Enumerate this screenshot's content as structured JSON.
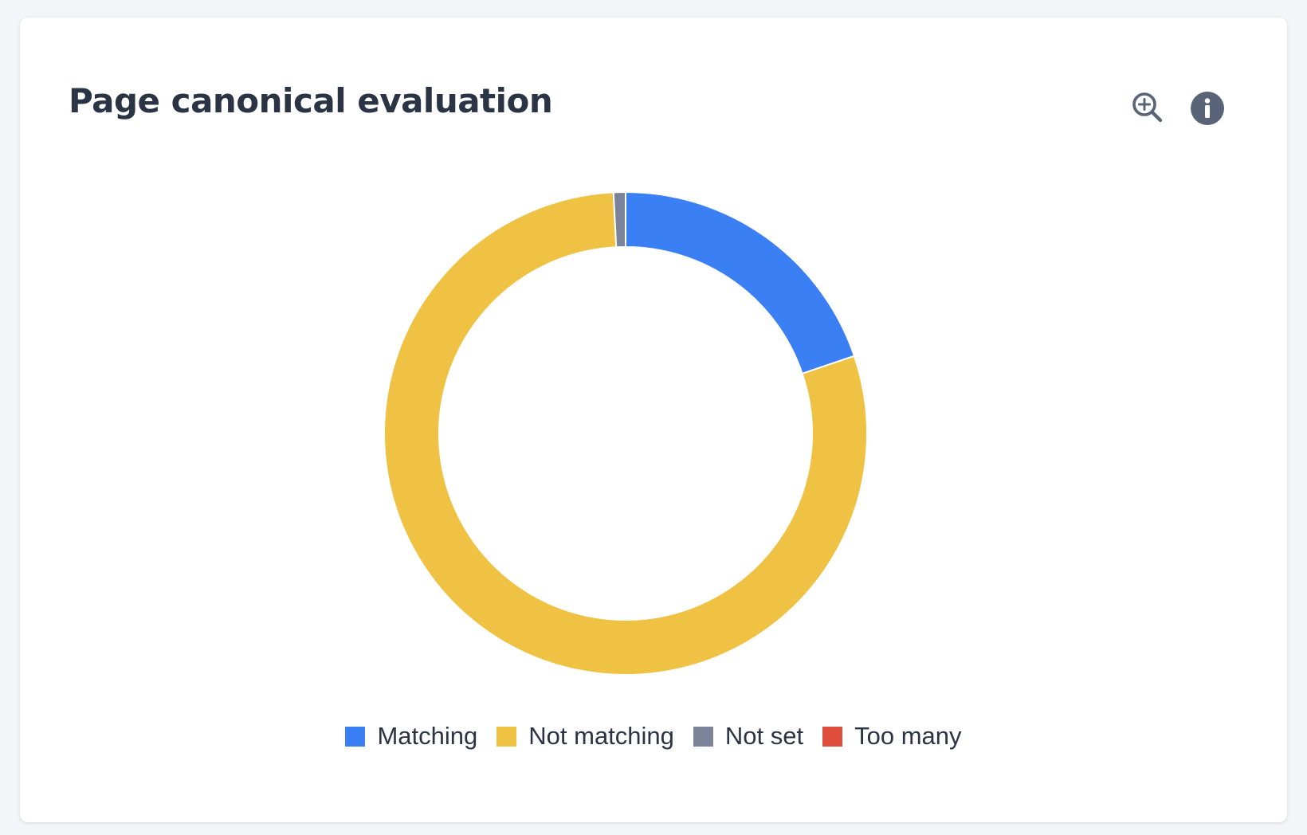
{
  "card": {
    "title": "Page canonical evaluation"
  },
  "toolbar": {
    "zoom_icon": "zoom-in-icon",
    "info_icon": "info-icon"
  },
  "chart_data": {
    "type": "pie",
    "donut": true,
    "categories": [
      "Matching",
      "Not matching",
      "Not set",
      "Too many"
    ],
    "values": [
      19.8,
      79.4,
      0.8,
      0.0
    ],
    "unit": "%",
    "colors": [
      "#3b7ff4",
      "#efc244",
      "#7a8399",
      "#e04e3e"
    ],
    "start_angle": "12 o'clock",
    "direction": "clockwise",
    "legend": "bottom",
    "title": ""
  }
}
